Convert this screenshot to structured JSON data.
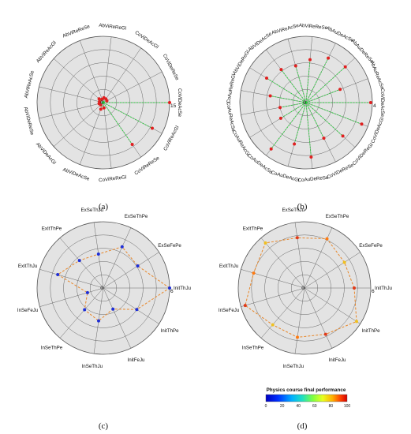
{
  "panels": [
    {
      "caption": "(a)",
      "r_max": 15,
      "rings": 5,
      "tick_label": "15",
      "line_color": "#2ecc40",
      "marker_color": "#e02020",
      "labels": [
        "CoViDeAcSe",
        "CoViDeReSe",
        "CoViDeAcGl",
        "AbViReReGl",
        "AbViReReSe",
        "AbViReAcGl",
        "AbViReAcSe",
        "AbViDeReSe",
        "AbViDeAcGl",
        "AbViDeAcSe",
        "CoViReReGl",
        "CoViReReSe",
        "CoViReAcGl"
      ],
      "values": [
        15,
        0.9,
        1.0,
        1.1,
        0.8,
        1.3,
        0.9,
        1.0,
        0.8,
        1.6,
        1.2,
        11.5,
        12.5
      ]
    },
    {
      "caption": "(b)",
      "r_max": 4,
      "rings": 5,
      "tick_label": "4",
      "line_color": "#2ecc40",
      "marker_color": "#e02020",
      "labels": [
        "CoViDeAcSe",
        "AbAuReAcSe",
        "AbAuDeReSe",
        "AbAuDeAcSe",
        "AbViReReSe",
        "AbViReAcSe",
        "AbViDeAcSe",
        "AbViDeReGl",
        "CoAuReReGl",
        "CoAuReAcSe",
        "CoAuReAcGl",
        "CoAuDeAcSe",
        "CoAuDeAcGl",
        "CoAuDeReSe",
        "CoViDeReSe",
        "CoViDeReGl",
        "CoViDeAcGl"
      ],
      "values": [
        3.9,
        2.2,
        3.2,
        3.0,
        2.6,
        2.3,
        2.5,
        2.8,
        2.2,
        1.6,
        1.8,
        3.5,
        2.6,
        3.3,
        2.4,
        3.0,
        3.6
      ]
    },
    {
      "caption": "(c)",
      "r_max": 6,
      "rings": 5,
      "tick_label": "6",
      "line_color": "#e8872a",
      "marker_color": "#1f2fd6",
      "labels": [
        "InitThJu",
        "ExSeFePe",
        "ExSeThPe",
        "ExSeThJu",
        "ExItThPe",
        "ExItThJu",
        "InSeFeJu",
        "InSeThPe",
        "InSeThJu",
        "InitFeJu",
        "InitThPe"
      ],
      "values": [
        6.0,
        3.7,
        4.1,
        3.1,
        3.3,
        4.3,
        1.5,
        2.6,
        3.0,
        2.1,
        3.6
      ]
    },
    {
      "caption": "(d)",
      "r_max": 6,
      "rings": 5,
      "tick_label": "6",
      "line_color": "#e8872a",
      "marker_color": "#e03a1a",
      "labels": [
        "InitThJu",
        "ExSeFePe",
        "ExSeThPe",
        "ExSeThJu",
        "ExItThPe",
        "ExItThJu",
        "InSeFeJu",
        "InSeThPe",
        "InSeThJu",
        "InitFeJu",
        "InitThPe"
      ],
      "values": [
        4.5,
        4.3,
        4.9,
        4.6,
        5.4,
        4.8,
        5.6,
        4.4,
        4.5,
        4.6,
        5.6
      ],
      "colorbar": {
        "title": "Physics course final performance",
        "ticks": [
          "0",
          "20",
          "40",
          "60",
          "80",
          "100"
        ]
      }
    }
  ]
}
